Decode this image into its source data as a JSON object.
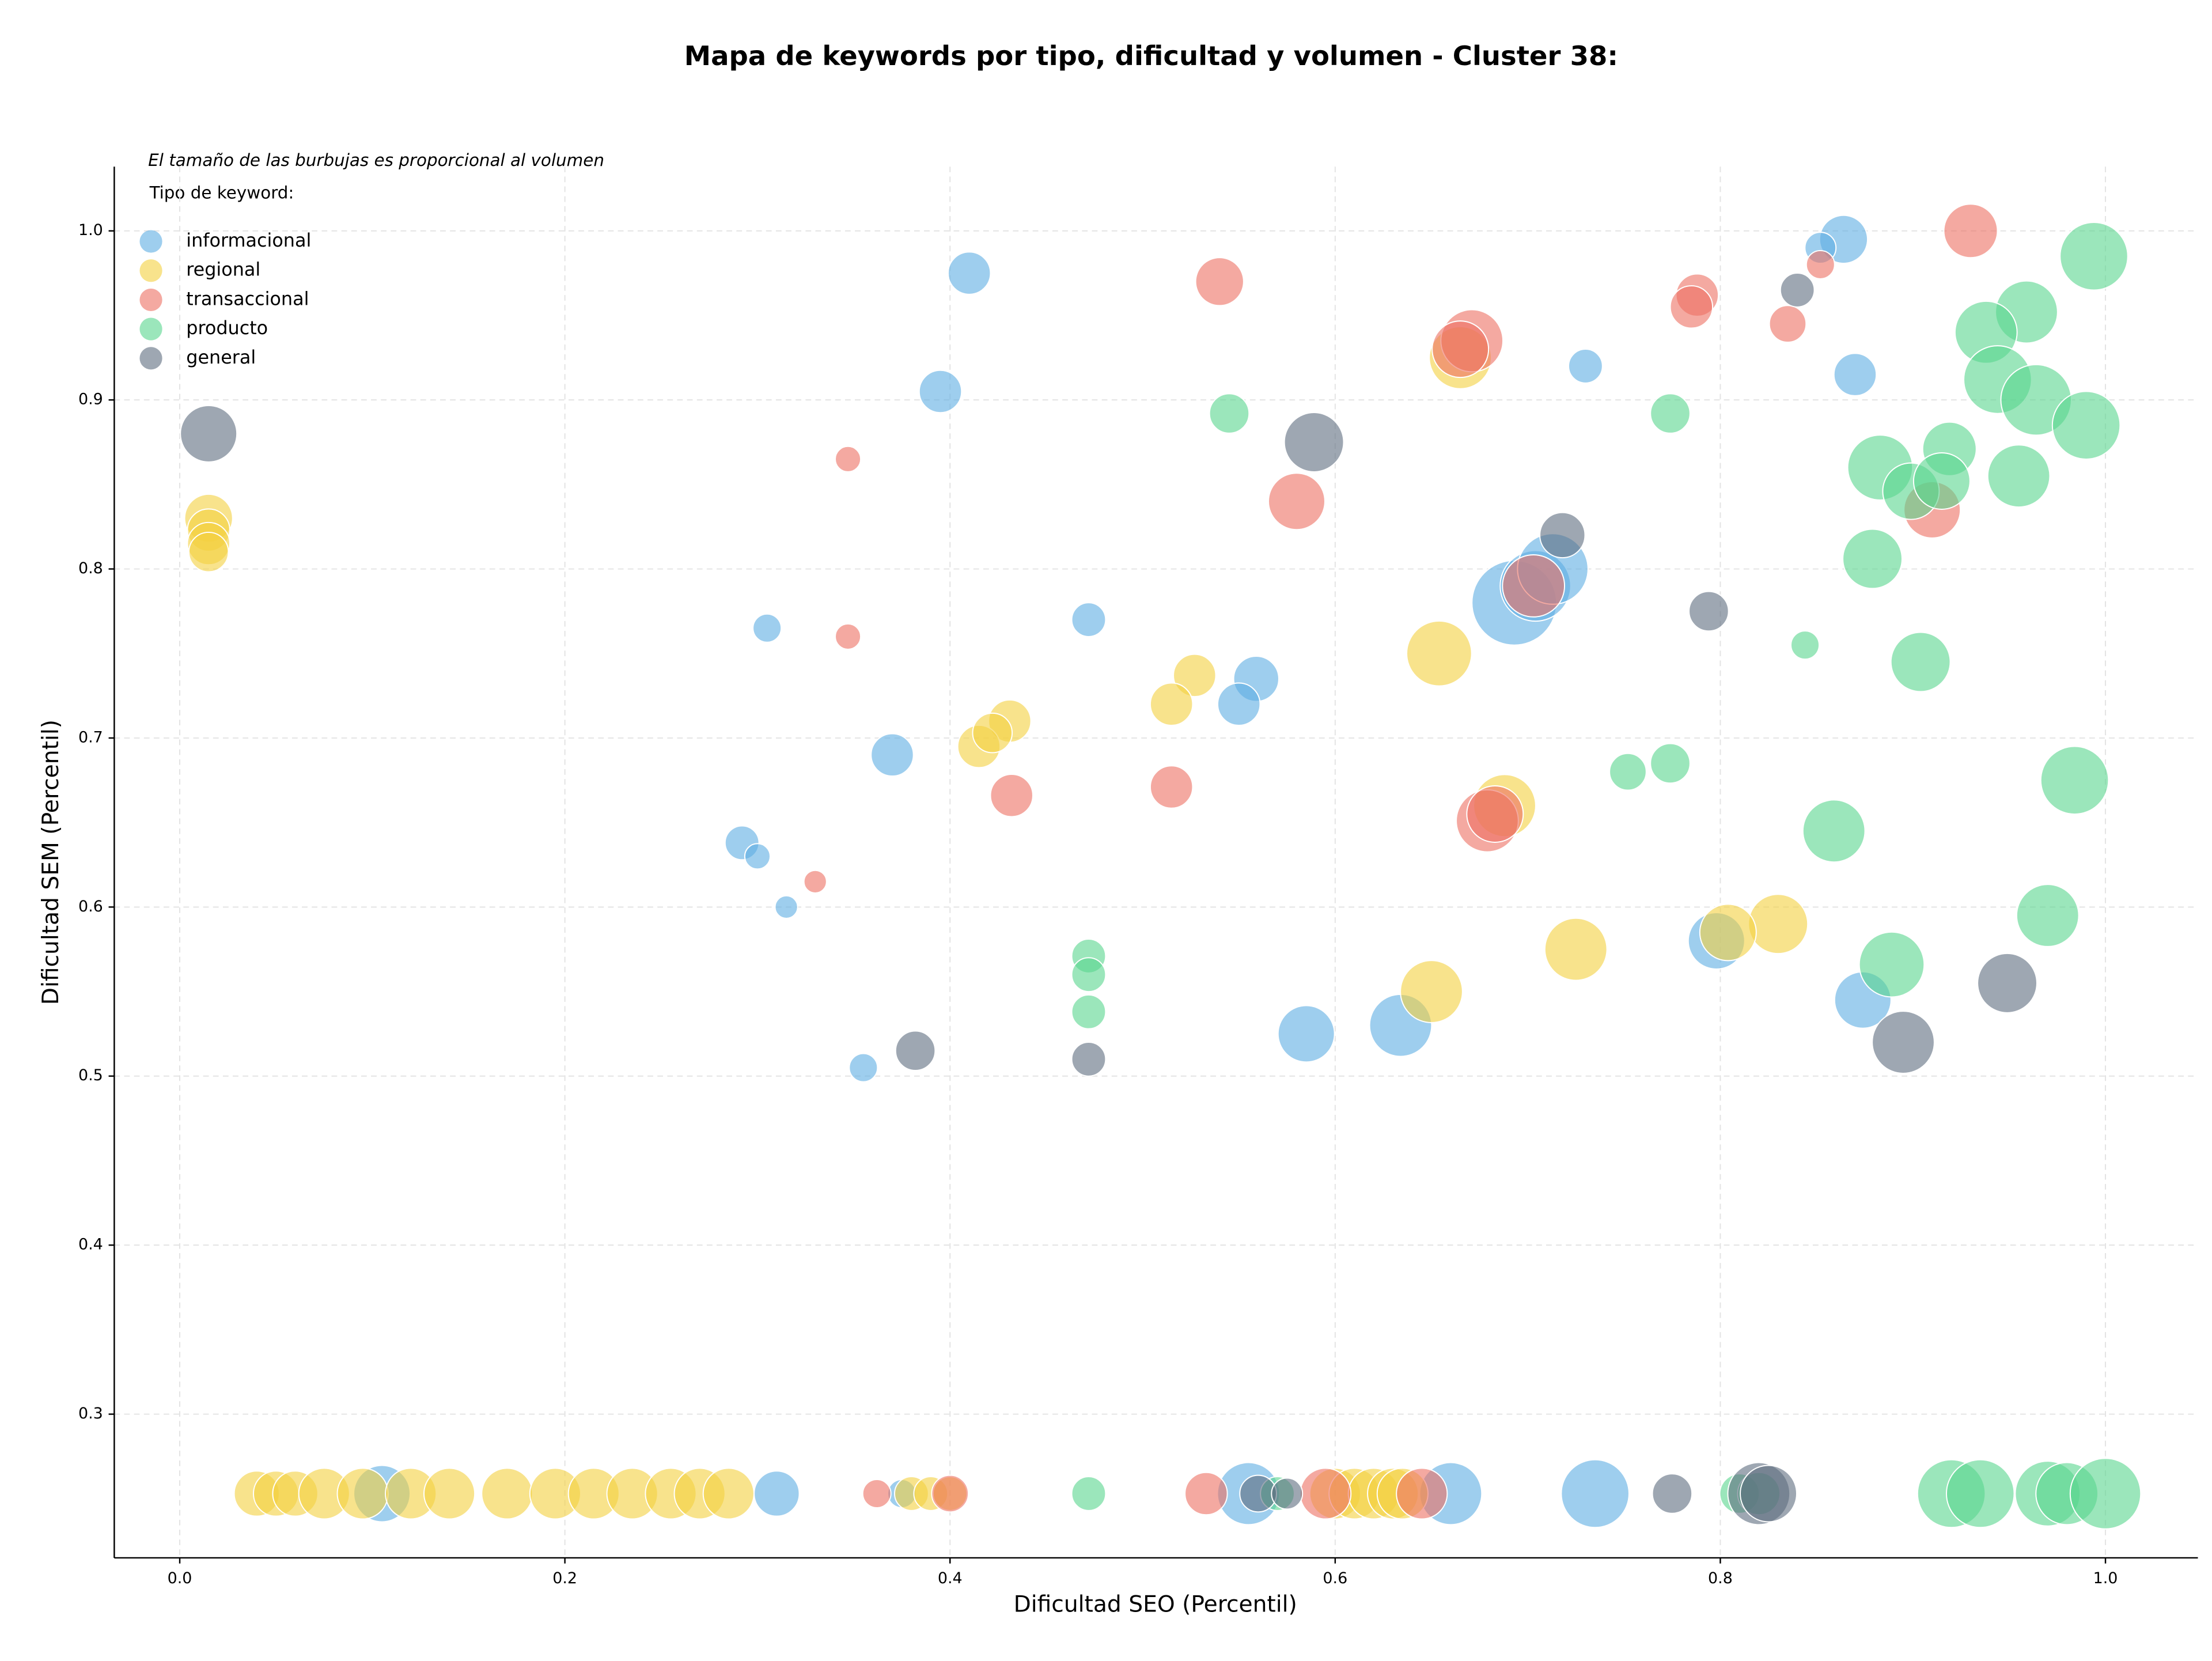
{
  "chart_data": {
    "type": "bubble",
    "title": "Mapa de keywords por tipo, dificultad y volumen - Cluster 38:",
    "x_label": "Dificultad SEO (Percentil)",
    "y_label": "Dificultad SEM (Percentil)",
    "annotation": "El tamaño de las burbujas es proporcional al volumen",
    "legend_title": "Tipo de keyword:",
    "legend": "upper left",
    "grid": true,
    "xlim": [
      -0.034,
      1.048
    ],
    "ylim": [
      0.215,
      1.038
    ],
    "xticks": [
      {
        "value": 0,
        "label": "0.0"
      },
      0.2,
      0.4,
      0.6,
      0.8,
      {
        "value": 1,
        "label": "1.0"
      }
    ],
    "yticks": [
      0.3,
      0.4,
      0.5,
      0.6,
      0.7,
      0.8,
      0.9,
      {
        "value": 1,
        "label": "1.0"
      }
    ],
    "series": [
      {
        "name": "informacional",
        "color": "#5dade2",
        "x": [
          0.864,
          0.852,
          0.41,
          0.395,
          0.73,
          0.87,
          0.693,
          0.704,
          0.713,
          0.305,
          0.472,
          0.559,
          0.55,
          0.37,
          0.292,
          0.3,
          0.315,
          0.355,
          0.585,
          0.634,
          0.798,
          0.874,
          0.105,
          0.31,
          0.375,
          0.555,
          0.66,
          0.735
        ],
        "values": [
          0.995,
          0.99,
          0.975,
          0.905,
          0.92,
          0.915,
          0.78,
          0.79,
          0.8,
          0.765,
          0.77,
          0.735,
          0.72,
          0.69,
          0.638,
          0.63,
          0.6,
          0.505,
          0.525,
          0.53,
          0.58,
          0.545,
          0.253,
          0.253,
          0.253,
          0.253,
          0.253,
          0.253
        ],
        "sizes": [
          289,
          121,
          225,
          225,
          144,
          225,
          900,
          625,
          625,
          100,
          144,
          256,
          225,
          225,
          144,
          81,
          64,
          100,
          400,
          484,
          400,
          400,
          400,
          256,
          100,
          484,
          484,
          576
        ]
      },
      {
        "name": "regional",
        "color": "#f4d03f",
        "x": [
          0.015,
          0.015,
          0.015,
          0.015,
          0.665,
          0.654,
          0.527,
          0.515,
          0.431,
          0.415,
          0.422,
          0.688,
          0.725,
          0.83,
          0.804,
          0.65,
          0.04,
          0.05,
          0.06,
          0.075,
          0.095,
          0.12,
          0.14,
          0.17,
          0.195,
          0.215,
          0.235,
          0.255,
          0.27,
          0.285,
          0.38,
          0.39,
          0.4,
          0.6,
          0.61,
          0.62,
          0.63,
          0.635
        ],
        "values": [
          0.83,
          0.823,
          0.815,
          0.81,
          0.925,
          0.75,
          0.737,
          0.72,
          0.71,
          0.695,
          0.703,
          0.66,
          0.575,
          0.59,
          0.585,
          0.55,
          0.253,
          0.253,
          0.253,
          0.253,
          0.253,
          0.253,
          0.253,
          0.253,
          0.253,
          0.253,
          0.253,
          0.253,
          0.253,
          0.253,
          0.253,
          0.253,
          0.253,
          0.253,
          0.253,
          0.253,
          0.253,
          0.253
        ],
        "sizes": [
          289,
          225,
          225,
          196,
          484,
          529,
          225,
          225,
          225,
          225,
          196,
          484,
          484,
          441,
          400,
          484,
          256,
          256,
          256,
          324,
          324,
          324,
          324,
          324,
          324,
          324,
          324,
          324,
          324,
          324,
          144,
          144,
          144,
          324,
          324,
          324,
          324,
          324
        ]
      },
      {
        "name": "transaccional",
        "color": "#ec7063",
        "x": [
          0.93,
          0.54,
          0.788,
          0.785,
          0.852,
          0.835,
          0.671,
          0.665,
          0.347,
          0.58,
          0.91,
          0.703,
          0.347,
          0.432,
          0.515,
          0.679,
          0.683,
          0.33,
          0.362,
          0.4,
          0.533,
          0.595,
          0.645
        ],
        "values": [
          1.0,
          0.97,
          0.962,
          0.955,
          0.98,
          0.945,
          0.935,
          0.93,
          0.865,
          0.84,
          0.835,
          0.79,
          0.76,
          0.666,
          0.671,
          0.651,
          0.655,
          0.615,
          0.253,
          0.253,
          0.253,
          0.253,
          0.253
        ],
        "sizes": [
          361,
          289,
          225,
          225,
          100,
          169,
          484,
          400,
          81,
          400,
          400,
          484,
          81,
          225,
          225,
          484,
          400,
          64,
          100,
          169,
          225,
          324,
          324
        ]
      },
      {
        "name": "producto",
        "color": "#58d68d",
        "x": [
          0.994,
          0.959,
          0.938,
          0.944,
          0.964,
          0.99,
          0.919,
          0.883,
          0.899,
          0.915,
          0.955,
          0.774,
          0.545,
          0.879,
          0.844,
          0.904,
          0.752,
          0.774,
          0.984,
          0.859,
          0.97,
          0.889,
          0.472,
          0.472,
          0.472,
          0.472,
          0.57,
          0.81,
          0.82,
          0.92,
          0.935,
          0.97,
          0.98,
          1.0
        ],
        "values": [
          0.985,
          0.952,
          0.94,
          0.912,
          0.9,
          0.885,
          0.871,
          0.86,
          0.846,
          0.852,
          0.855,
          0.892,
          0.892,
          0.806,
          0.755,
          0.745,
          0.68,
          0.685,
          0.675,
          0.645,
          0.595,
          0.566,
          0.571,
          0.56,
          0.538,
          0.253,
          0.253,
          0.253,
          0.253,
          0.253,
          0.253,
          0.253,
          0.253,
          0.253
        ],
        "sizes": [
          576,
          484,
          484,
          576,
          625,
          576,
          361,
          529,
          400,
          400,
          484,
          196,
          196,
          441,
          100,
          441,
          169,
          196,
          576,
          484,
          484,
          529,
          144,
          144,
          144,
          144,
          144,
          196,
          225,
          576,
          576,
          529,
          484,
          625
        ]
      },
      {
        "name": "general",
        "color": "#5d6d7e",
        "x": [
          0.015,
          0.589,
          0.84,
          0.718,
          0.794,
          0.949,
          0.895,
          0.382,
          0.472,
          0.56,
          0.575,
          0.775,
          0.82,
          0.825
        ],
        "values": [
          0.88,
          0.875,
          0.965,
          0.82,
          0.775,
          0.555,
          0.52,
          0.515,
          0.51,
          0.253,
          0.253,
          0.253,
          0.253,
          0.253
        ],
        "sizes": [
          400,
          441,
          144,
          256,
          196,
          441,
          484,
          196,
          144,
          169,
          121,
          196,
          484,
          400
        ]
      }
    ]
  }
}
